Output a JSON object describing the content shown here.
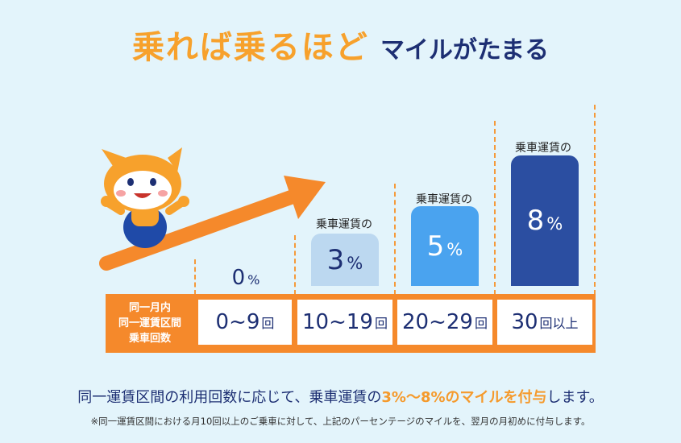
{
  "title": {
    "main": "乗れば乗るほど",
    "sub": "マイルがたまる"
  },
  "row_header": [
    "同一月内",
    "同一運賃区間",
    "乗車回数"
  ],
  "tiers": [
    {
      "rate": "0",
      "rate_unit": "%",
      "range": "0~9",
      "range_unit": "回",
      "bar_label": ""
    },
    {
      "rate": "3",
      "rate_unit": "%",
      "range": "10~19",
      "range_unit": "回",
      "bar_label": "乗車運賃の"
    },
    {
      "rate": "5",
      "rate_unit": "%",
      "range": "20~29",
      "range_unit": "回",
      "bar_label": "乗車運賃の"
    },
    {
      "rate": "8",
      "rate_unit": "%",
      "range": "30",
      "range_unit": "回以上",
      "bar_label": "乗車運賃の"
    }
  ],
  "description": {
    "before": "同一運賃区間の利用回数に応じて、乗車運賃の",
    "highlight": "3%～8%のマイルを付与",
    "after": "します。"
  },
  "note": "※同一運賃区間における月10回以上のご乗車に対して、上記のパーセンテージのマイルを、翌月の月初めに付与します。",
  "colors": {
    "orange": "#f5892b",
    "title_orange": "#f7a12c",
    "navy": "#1d2f73",
    "bar_3": "#bcd8f0",
    "bar_5": "#4aa3ef",
    "bar_8": "#2b4ea1",
    "background": "#e3f4fb"
  },
  "icons": [
    "fox-mascot",
    "arrow-up-right-icon"
  ]
}
